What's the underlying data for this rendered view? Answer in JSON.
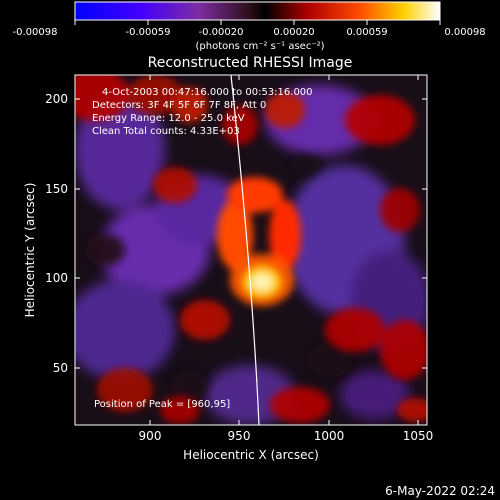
{
  "colorbar": {
    "tick_labels": [
      "-0.00098",
      "-0.00059",
      "-0.00020",
      "0.00020",
      "0.00059",
      "0.00098"
    ],
    "units_label": "(photons cm⁻² s⁻¹ asec⁻²)"
  },
  "title": "Reconstructed RHESSI Image",
  "annotations": {
    "time_range": "4-Oct-2003 00:47:16.000 to 00:53:16.000",
    "detectors": "Detectors: 3F 4F 5F 6F 7F 8F, Att 0",
    "energy_range": "Energy Range: 12.0 - 25.0 keV",
    "clean_counts": "Clean     Total counts: 4.33E+03",
    "peak_position": "Position of Peak = [960,95]"
  },
  "axes": {
    "xlabel": "Heliocentric X (arcsec)",
    "ylabel": "Heliocentric Y (arcsec)",
    "x_ticks": [
      "900",
      "950",
      "1000",
      "1050"
    ],
    "y_ticks": [
      "50",
      "100",
      "150",
      "200"
    ]
  },
  "footer": {
    "timestamp": "6-May-2022 02:24"
  },
  "image_data": {
    "x_range": [
      858,
      1050
    ],
    "y_range": [
      17,
      208
    ],
    "peak": {
      "x": 960,
      "y": 95
    }
  },
  "colors": {
    "background": "#000000",
    "text": "#ffffff",
    "limb_line": "#ffffff"
  }
}
